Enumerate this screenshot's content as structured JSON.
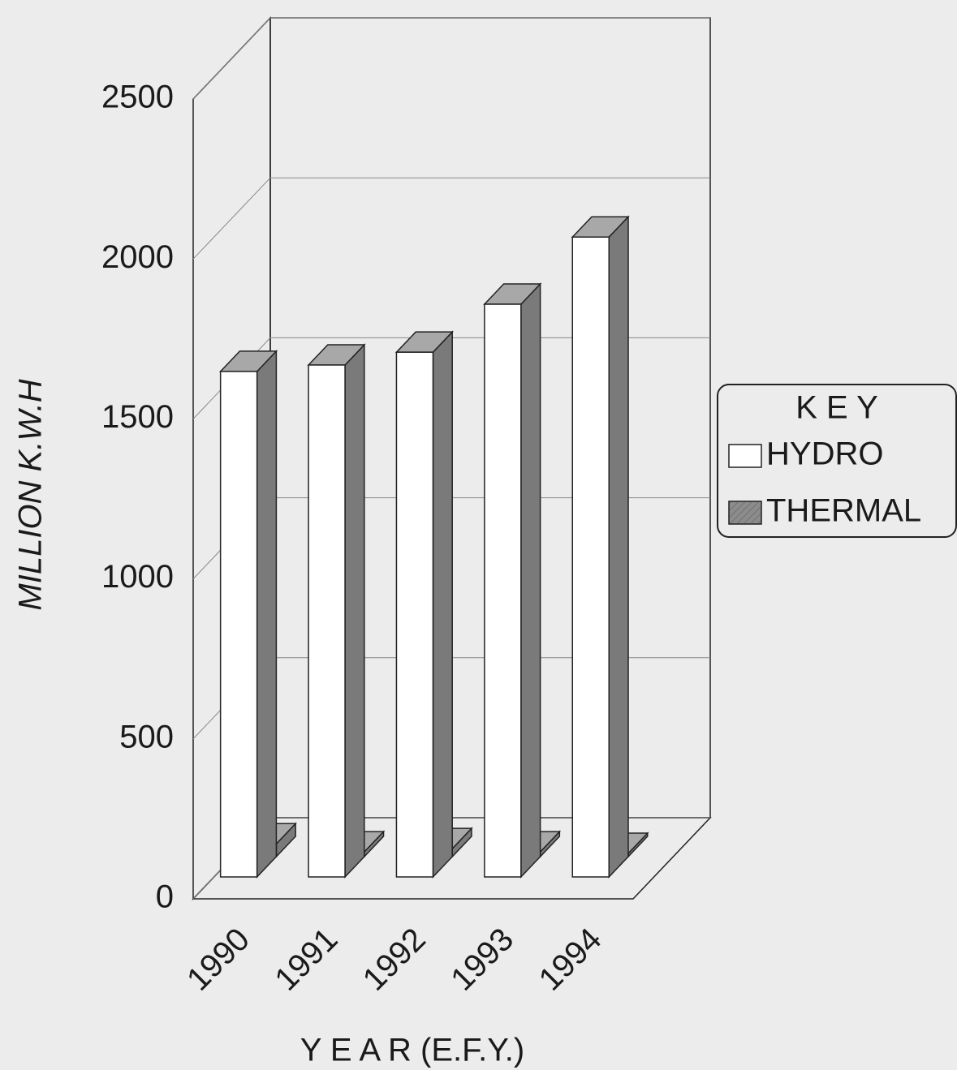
{
  "chart_data": {
    "type": "bar3d",
    "ylabel": "MILLION K.W.H",
    "xlabel": "Y E A R (E.F.Y.)",
    "categories": [
      "1990",
      "1991",
      "1992",
      "1993",
      "1994"
    ],
    "series": [
      {
        "name": "HYDRO",
        "color": "#ffffff",
        "values": [
          1580,
          1600,
          1640,
          1790,
          2000
        ]
      },
      {
        "name": "THERMAL",
        "color": "#8c8c8c",
        "values": [
          40,
          15,
          25,
          15,
          10
        ]
      }
    ],
    "ylim": [
      0,
      2500
    ],
    "yticks": [
      0,
      500,
      1000,
      1500,
      2000,
      2500
    ],
    "grid": true,
    "legend_title": "K E Y",
    "legend": "right"
  }
}
